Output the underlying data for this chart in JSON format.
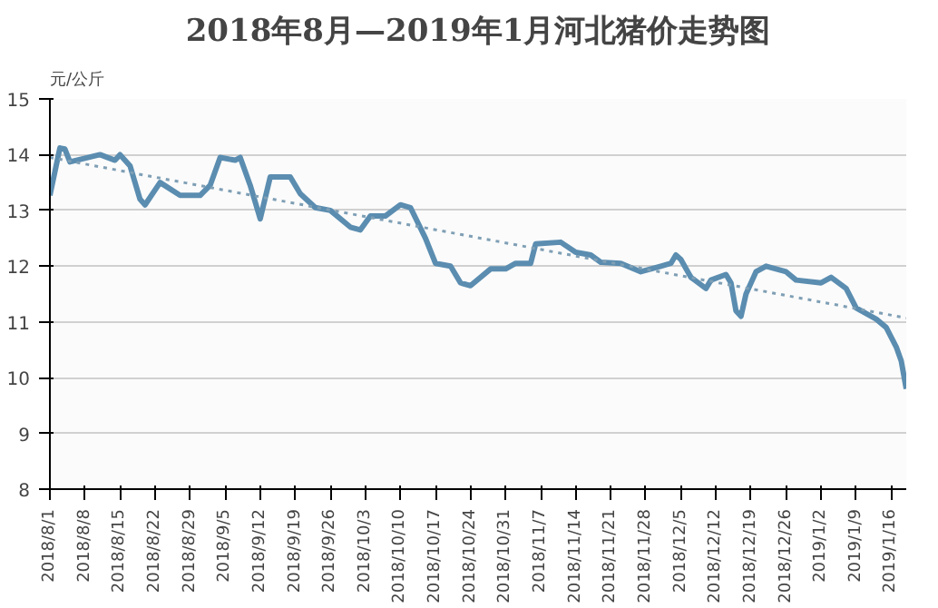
{
  "chart_data": {
    "type": "line",
    "title": "2018年8月—2019年1月河北猪价走势图",
    "ylabel": "元/公斤",
    "x": [
      "2018-08-01",
      "2018-08-03",
      "2018-08-04",
      "2018-08-05",
      "2018-08-11",
      "2018-08-14",
      "2018-08-15",
      "2018-08-17",
      "2018-08-19",
      "2018-08-20",
      "2018-08-23",
      "2018-08-27",
      "2018-08-31",
      "2018-09-02",
      "2018-09-04",
      "2018-09-07",
      "2018-09-08",
      "2018-09-10",
      "2018-09-12",
      "2018-09-14",
      "2018-09-18",
      "2018-09-20",
      "2018-09-23",
      "2018-09-26",
      "2018-09-30",
      "2018-10-02",
      "2018-10-04",
      "2018-10-07",
      "2018-10-10",
      "2018-10-12",
      "2018-10-15",
      "2018-10-17",
      "2018-10-20",
      "2018-10-22",
      "2018-10-24",
      "2018-10-28",
      "2018-10-31",
      "2018-11-02",
      "2018-11-05",
      "2018-11-06",
      "2018-11-11",
      "2018-11-14",
      "2018-11-17",
      "2018-11-19",
      "2018-11-23",
      "2018-11-27",
      "2018-12-01",
      "2018-12-03",
      "2018-12-04",
      "2018-12-05",
      "2018-12-07",
      "2018-12-10",
      "2018-12-11",
      "2018-12-14",
      "2018-12-15",
      "2018-12-16",
      "2018-12-17",
      "2018-12-18",
      "2018-12-20",
      "2018-12-22",
      "2018-12-26",
      "2018-12-28",
      "2019-01-02",
      "2019-01-04",
      "2019-01-07",
      "2019-01-09",
      "2019-01-13",
      "2019-01-15",
      "2019-01-17",
      "2019-01-18",
      "2019-01-19"
    ],
    "series": [
      {
        "color": "#5b8db0",
        "values": [
          13.27,
          14.12,
          14.1,
          13.87,
          14.0,
          13.9,
          14.0,
          13.8,
          13.2,
          13.1,
          13.5,
          13.27,
          13.27,
          13.45,
          13.95,
          13.9,
          13.95,
          13.45,
          12.85,
          13.6,
          13.6,
          13.3,
          13.05,
          13.0,
          12.7,
          12.65,
          12.9,
          12.9,
          13.1,
          13.05,
          12.5,
          12.05,
          12.0,
          11.7,
          11.65,
          11.95,
          11.95,
          12.05,
          12.05,
          12.4,
          12.43,
          12.25,
          12.2,
          12.07,
          12.05,
          11.9,
          12.0,
          12.05,
          12.2,
          12.12,
          11.8,
          11.6,
          11.75,
          11.85,
          11.7,
          11.2,
          11.1,
          11.5,
          11.9,
          12.0,
          11.9,
          11.75,
          11.7,
          11.8,
          11.6,
          11.25,
          11.05,
          10.9,
          10.55,
          10.3,
          9.8
        ]
      },
      {
        "type": "line",
        "line_style": "dotted",
        "color": "#7f9fb5",
        "x": [
          "2018-08-01",
          "2019-01-19"
        ],
        "values": [
          13.95,
          11.07
        ]
      }
    ],
    "xlim": [
      "2018-08-01",
      "2019-01-19"
    ],
    "xticks": [
      {
        "value": "2018-08-01",
        "label": "2018/8/1"
      },
      {
        "value": "2018-08-08",
        "label": "2018/8/8"
      },
      {
        "value": "2018-08-15",
        "label": "2018/8/15"
      },
      {
        "value": "2018-08-22",
        "label": "2018/8/22"
      },
      {
        "value": "2018-08-29",
        "label": "2018/8/29"
      },
      {
        "value": "2018-09-05",
        "label": "2018/9/5"
      },
      {
        "value": "2018-09-12",
        "label": "2018/9/12"
      },
      {
        "value": "2018-09-19",
        "label": "2018/9/19"
      },
      {
        "value": "2018-09-26",
        "label": "2018/9/26"
      },
      {
        "value": "2018-10-03",
        "label": "2018/10/3"
      },
      {
        "value": "2018-10-10",
        "label": "2018/10/10"
      },
      {
        "value": "2018-10-17",
        "label": "2018/10/17"
      },
      {
        "value": "2018-10-24",
        "label": "2018/10/24"
      },
      {
        "value": "2018-10-31",
        "label": "2018/10/31"
      },
      {
        "value": "2018-11-07",
        "label": "2018/11/7"
      },
      {
        "value": "2018-11-14",
        "label": "2018/11/14"
      },
      {
        "value": "2018-11-21",
        "label": "2018/11/21"
      },
      {
        "value": "2018-11-28",
        "label": "2018/11/28"
      },
      {
        "value": "2018-12-05",
        "label": "2018/12/5"
      },
      {
        "value": "2018-12-12",
        "label": "2018/12/12"
      },
      {
        "value": "2018-12-19",
        "label": "2018/12/19"
      },
      {
        "value": "2018-12-26",
        "label": "2018/12/26"
      },
      {
        "value": "2019-01-02",
        "label": "2019/1/2"
      },
      {
        "value": "2019-01-09",
        "label": "2019/1/9"
      },
      {
        "value": "2019-01-16",
        "label": "2019/1/16"
      }
    ],
    "ylim": [
      8,
      15
    ],
    "yticks": [
      8,
      9,
      10,
      11,
      12,
      13,
      14,
      15
    ],
    "grid": "y"
  }
}
